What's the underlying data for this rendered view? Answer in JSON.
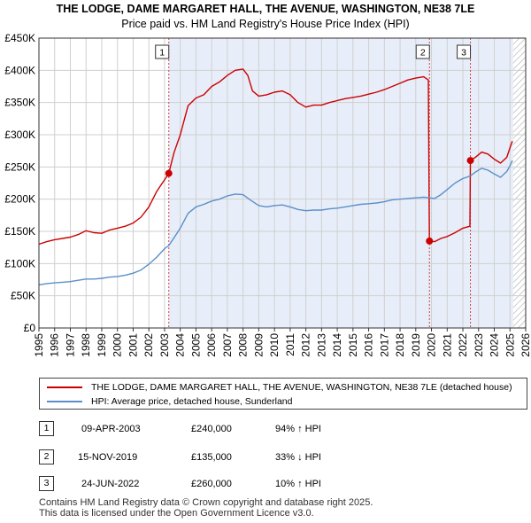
{
  "title": {
    "line1": "THE LODGE, DAME MARGARET HALL, THE AVENUE, WASHINGTON, NE38 7LE",
    "line2": "Price paid vs. HM Land Registry's House Price Index (HPI)"
  },
  "colors": {
    "property": "#cc0000",
    "hpi": "#5b8fc9",
    "shade": "#e8eef9",
    "marker_line": "#d04040",
    "grid": "#cfcfcf"
  },
  "chart_data": {
    "type": "line",
    "x_range": [
      1995,
      2026
    ],
    "y_range": [
      0,
      450000
    ],
    "y_ticks": [
      {
        "value": 0,
        "label": "£0"
      },
      {
        "value": 50000,
        "label": "£50K"
      },
      {
        "value": 100000,
        "label": "£100K"
      },
      {
        "value": 150000,
        "label": "£150K"
      },
      {
        "value": 200000,
        "label": "£200K"
      },
      {
        "value": 250000,
        "label": "£250K"
      },
      {
        "value": 300000,
        "label": "£300K"
      },
      {
        "value": 350000,
        "label": "£350K"
      },
      {
        "value": 400000,
        "label": "£400K"
      },
      {
        "value": 450000,
        "label": "£450K"
      }
    ],
    "x_ticks": [
      "1995",
      "1996",
      "1997",
      "1998",
      "1999",
      "2000",
      "2001",
      "2002",
      "2003",
      "2004",
      "2005",
      "2006",
      "2007",
      "2008",
      "2009",
      "2010",
      "2011",
      "2012",
      "2013",
      "2014",
      "2015",
      "2016",
      "2017",
      "2018",
      "2019",
      "2020",
      "2021",
      "2022",
      "2023",
      "2024",
      "2025",
      "2026"
    ],
    "shaded_region": [
      2003.27,
      2025.2
    ],
    "hatch_from": 2025.2,
    "series": [
      {
        "name": "THE LODGE, DAME MARGARET HALL, THE AVENUE, WASHINGTON, NE38 7LE (detached house)",
        "color": "#cc0000",
        "points": [
          [
            1995.0,
            130000
          ],
          [
            1995.5,
            134000
          ],
          [
            1996.0,
            137000
          ],
          [
            1996.5,
            139000
          ],
          [
            1997.0,
            141000
          ],
          [
            1997.5,
            145000
          ],
          [
            1998.0,
            151000
          ],
          [
            1998.5,
            148000
          ],
          [
            1999.0,
            147000
          ],
          [
            1999.5,
            152000
          ],
          [
            2000.0,
            155000
          ],
          [
            2000.5,
            158000
          ],
          [
            2001.0,
            163000
          ],
          [
            2001.5,
            172000
          ],
          [
            2002.0,
            188000
          ],
          [
            2002.5,
            212000
          ],
          [
            2003.0,
            230000
          ],
          [
            2003.27,
            240000
          ],
          [
            2003.6,
            272000
          ],
          [
            2004.0,
            300000
          ],
          [
            2004.5,
            345000
          ],
          [
            2005.0,
            357000
          ],
          [
            2005.5,
            362000
          ],
          [
            2006.0,
            375000
          ],
          [
            2006.5,
            382000
          ],
          [
            2007.0,
            392000
          ],
          [
            2007.5,
            400000
          ],
          [
            2008.0,
            402000
          ],
          [
            2008.3,
            392000
          ],
          [
            2008.6,
            368000
          ],
          [
            2009.0,
            360000
          ],
          [
            2009.5,
            362000
          ],
          [
            2010.0,
            366000
          ],
          [
            2010.5,
            368000
          ],
          [
            2011.0,
            362000
          ],
          [
            2011.5,
            350000
          ],
          [
            2012.0,
            343000
          ],
          [
            2012.5,
            346000
          ],
          [
            2013.0,
            346000
          ],
          [
            2013.5,
            350000
          ],
          [
            2014.0,
            353000
          ],
          [
            2014.5,
            356000
          ],
          [
            2015.0,
            358000
          ],
          [
            2015.5,
            360000
          ],
          [
            2016.0,
            363000
          ],
          [
            2016.5,
            366000
          ],
          [
            2017.0,
            370000
          ],
          [
            2017.5,
            375000
          ],
          [
            2018.0,
            380000
          ],
          [
            2018.5,
            385000
          ],
          [
            2019.0,
            388000
          ],
          [
            2019.5,
            390000
          ],
          [
            2019.8,
            385000
          ],
          [
            2019.87,
            135000
          ],
          [
            2020.2,
            134000
          ],
          [
            2020.6,
            139000
          ],
          [
            2021.0,
            142000
          ],
          [
            2021.5,
            148000
          ],
          [
            2022.0,
            155000
          ],
          [
            2022.45,
            158000
          ],
          [
            2022.48,
            260000
          ],
          [
            2022.8,
            265000
          ],
          [
            2023.2,
            273000
          ],
          [
            2023.6,
            270000
          ],
          [
            2024.0,
            262000
          ],
          [
            2024.4,
            256000
          ],
          [
            2024.8,
            265000
          ],
          [
            2025.0,
            280000
          ],
          [
            2025.15,
            290000
          ]
        ]
      },
      {
        "name": "HPI: Average price, detached house, Sunderland",
        "color": "#5b8fc9",
        "points": [
          [
            1995.0,
            67000
          ],
          [
            1995.5,
            69000
          ],
          [
            1996.0,
            70000
          ],
          [
            1996.5,
            71000
          ],
          [
            1997.0,
            72000
          ],
          [
            1997.5,
            74000
          ],
          [
            1998.0,
            76000
          ],
          [
            1998.5,
            76000
          ],
          [
            1999.0,
            77000
          ],
          [
            1999.5,
            79000
          ],
          [
            2000.0,
            80000
          ],
          [
            2000.5,
            82000
          ],
          [
            2001.0,
            85000
          ],
          [
            2001.5,
            90000
          ],
          [
            2002.0,
            99000
          ],
          [
            2002.5,
            110000
          ],
          [
            2003.0,
            123000
          ],
          [
            2003.27,
            128000
          ],
          [
            2003.6,
            140000
          ],
          [
            2004.0,
            155000
          ],
          [
            2004.5,
            178000
          ],
          [
            2005.0,
            188000
          ],
          [
            2005.5,
            192000
          ],
          [
            2006.0,
            197000
          ],
          [
            2006.5,
            200000
          ],
          [
            2007.0,
            205000
          ],
          [
            2007.5,
            208000
          ],
          [
            2008.0,
            207000
          ],
          [
            2008.5,
            198000
          ],
          [
            2009.0,
            190000
          ],
          [
            2009.5,
            188000
          ],
          [
            2010.0,
            190000
          ],
          [
            2010.5,
            191000
          ],
          [
            2011.0,
            188000
          ],
          [
            2011.5,
            184000
          ],
          [
            2012.0,
            182000
          ],
          [
            2012.5,
            183000
          ],
          [
            2013.0,
            183000
          ],
          [
            2013.5,
            185000
          ],
          [
            2014.0,
            186000
          ],
          [
            2014.5,
            188000
          ],
          [
            2015.0,
            190000
          ],
          [
            2015.5,
            192000
          ],
          [
            2016.0,
            193000
          ],
          [
            2016.5,
            194000
          ],
          [
            2017.0,
            196000
          ],
          [
            2017.5,
            199000
          ],
          [
            2018.0,
            200000
          ],
          [
            2018.5,
            201000
          ],
          [
            2019.0,
            202000
          ],
          [
            2019.5,
            203000
          ],
          [
            2019.87,
            202000
          ],
          [
            2020.2,
            201000
          ],
          [
            2020.6,
            207000
          ],
          [
            2021.0,
            215000
          ],
          [
            2021.5,
            225000
          ],
          [
            2022.0,
            232000
          ],
          [
            2022.48,
            236000
          ],
          [
            2022.8,
            242000
          ],
          [
            2023.2,
            248000
          ],
          [
            2023.6,
            245000
          ],
          [
            2024.0,
            239000
          ],
          [
            2024.4,
            234000
          ],
          [
            2024.8,
            243000
          ],
          [
            2025.0,
            252000
          ],
          [
            2025.15,
            260000
          ]
        ]
      }
    ],
    "transactions": [
      {
        "id": "1",
        "x": 2003.27,
        "y": 240000,
        "date": "09-APR-2003",
        "price": "£240,000",
        "hpi": "94% ↑ HPI"
      },
      {
        "id": "2",
        "x": 2019.87,
        "y": 135000,
        "date": "15-NOV-2019",
        "price": "£135,000",
        "hpi": "33% ↓ HPI"
      },
      {
        "id": "3",
        "x": 2022.48,
        "y": 260000,
        "date": "24-JUN-2022",
        "price": "£260,000",
        "hpi": "10% ↑ HPI"
      }
    ]
  },
  "footer": {
    "line1": "Contains HM Land Registry data © Crown copyright and database right 2025.",
    "line2": "This data is licensed under the Open Government Licence v3.0."
  }
}
